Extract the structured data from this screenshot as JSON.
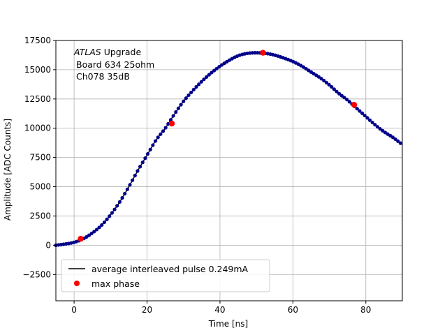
{
  "chart_data": {
    "type": "scatter",
    "xlabel": "Time [ns]",
    "ylabel": "Amplitude [ADC Counts]",
    "xlim": [
      -5,
      90
    ],
    "ylim": [
      -4750,
      17500
    ],
    "xticks": [
      0,
      20,
      40,
      60,
      80
    ],
    "yticks": [
      -2500,
      0,
      2500,
      5000,
      7500,
      10000,
      12500,
      15000,
      17500
    ],
    "grid": true,
    "legend_position": "lower-left",
    "annotation": {
      "line1_italic": "ATLAS",
      "line1_rest": " Upgrade",
      "line2": "Board 634 25ohm",
      "line3": "Ch078 35dB"
    },
    "series": [
      {
        "name": "average interleaved pulse 0.249mA",
        "style": "line",
        "color": "#000000",
        "marker_color": "#00008b",
        "x": [
          -5,
          -2.5,
          0,
          2.5,
          5,
          7.5,
          10,
          12.5,
          15,
          17.5,
          20,
          22.5,
          25,
          27.5,
          30,
          32.5,
          35,
          37.5,
          40,
          42.5,
          45,
          47.5,
          50,
          52.5,
          55,
          57.5,
          60,
          62.5,
          65,
          67.5,
          70,
          72.5,
          75,
          77.5,
          80,
          82.5,
          85,
          87.5,
          90
        ],
        "y": [
          0,
          100,
          250,
          550,
          1050,
          1700,
          2600,
          3700,
          5000,
          6400,
          7700,
          9000,
          10000,
          11200,
          12300,
          13200,
          14000,
          14700,
          15300,
          15800,
          16200,
          16400,
          16450,
          16400,
          16250,
          16000,
          15700,
          15300,
          14800,
          14300,
          13700,
          13000,
          12400,
          11700,
          11000,
          10300,
          9700,
          9200,
          8600
        ]
      },
      {
        "name": "max phase",
        "style": "scatter",
        "color": "#ff0000",
        "x": [
          1.8,
          26.8,
          51.8,
          76.8
        ],
        "y": [
          550,
          10400,
          16450,
          12000
        ]
      }
    ]
  }
}
